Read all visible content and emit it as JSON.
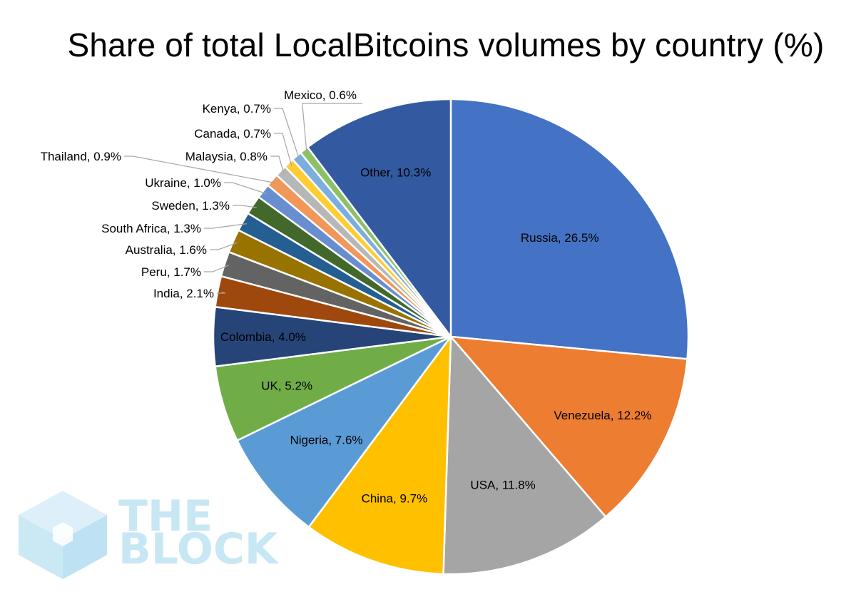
{
  "chart_data": {
    "type": "pie",
    "title": "Share of total LocalBitcoins volumes by country (%)",
    "unit": "%",
    "slices": [
      {
        "label": "Russia",
        "value": 26.5,
        "text": "Russia, 26.5%",
        "color": "#4472C4"
      },
      {
        "label": "Venezuela",
        "value": 12.2,
        "text": "Venezuela, 12.2%",
        "color": "#ED7D31"
      },
      {
        "label": "USA",
        "value": 11.8,
        "text": "USA, 11.8%",
        "color": "#A5A5A5"
      },
      {
        "label": "China",
        "value": 9.7,
        "text": "China, 9.7%",
        "color": "#FFC000"
      },
      {
        "label": "Nigeria",
        "value": 7.6,
        "text": "Nigeria, 7.6%",
        "color": "#5B9BD5"
      },
      {
        "label": "UK",
        "value": 5.2,
        "text": "UK, 5.2%",
        "color": "#70AD47"
      },
      {
        "label": "Colombia",
        "value": 4.0,
        "text": "Colombia, 4.0%",
        "color": "#264478"
      },
      {
        "label": "India",
        "value": 2.1,
        "text": "India, 2.1%",
        "color": "#9E480E"
      },
      {
        "label": "Peru",
        "value": 1.7,
        "text": "Peru, 1.7%",
        "color": "#636363"
      },
      {
        "label": "Australia",
        "value": 1.6,
        "text": "Australia, 1.6%",
        "color": "#997300"
      },
      {
        "label": "South Africa",
        "value": 1.3,
        "text": "South Africa, 1.3%",
        "color": "#255E91"
      },
      {
        "label": "Sweden",
        "value": 1.3,
        "text": "Sweden, 1.3%",
        "color": "#43682B"
      },
      {
        "label": "Ukraine",
        "value": 1.0,
        "text": "Ukraine, 1.0%",
        "color": "#698ED0"
      },
      {
        "label": "Thailand",
        "value": 0.9,
        "text": "Thailand, 0.9%",
        "color": "#F1975A"
      },
      {
        "label": "Malaysia",
        "value": 0.8,
        "text": "Malaysia, 0.8%",
        "color": "#B7B7B7"
      },
      {
        "label": "Canada",
        "value": 0.7,
        "text": "Canada, 0.7%",
        "color": "#FFCD33"
      },
      {
        "label": "Kenya",
        "value": 0.7,
        "text": "Kenya, 0.7%",
        "color": "#7CAFDD"
      },
      {
        "label": "Mexico",
        "value": 0.6,
        "text": "Mexico, 0.6%",
        "color": "#8CC168"
      },
      {
        "label": "Other",
        "value": 10.3,
        "text": "Other, 10.3%",
        "color": "#335AA1"
      }
    ]
  },
  "watermark": {
    "line1": "THE",
    "line2": "BLOCK",
    "color": "#BFE3F3"
  }
}
